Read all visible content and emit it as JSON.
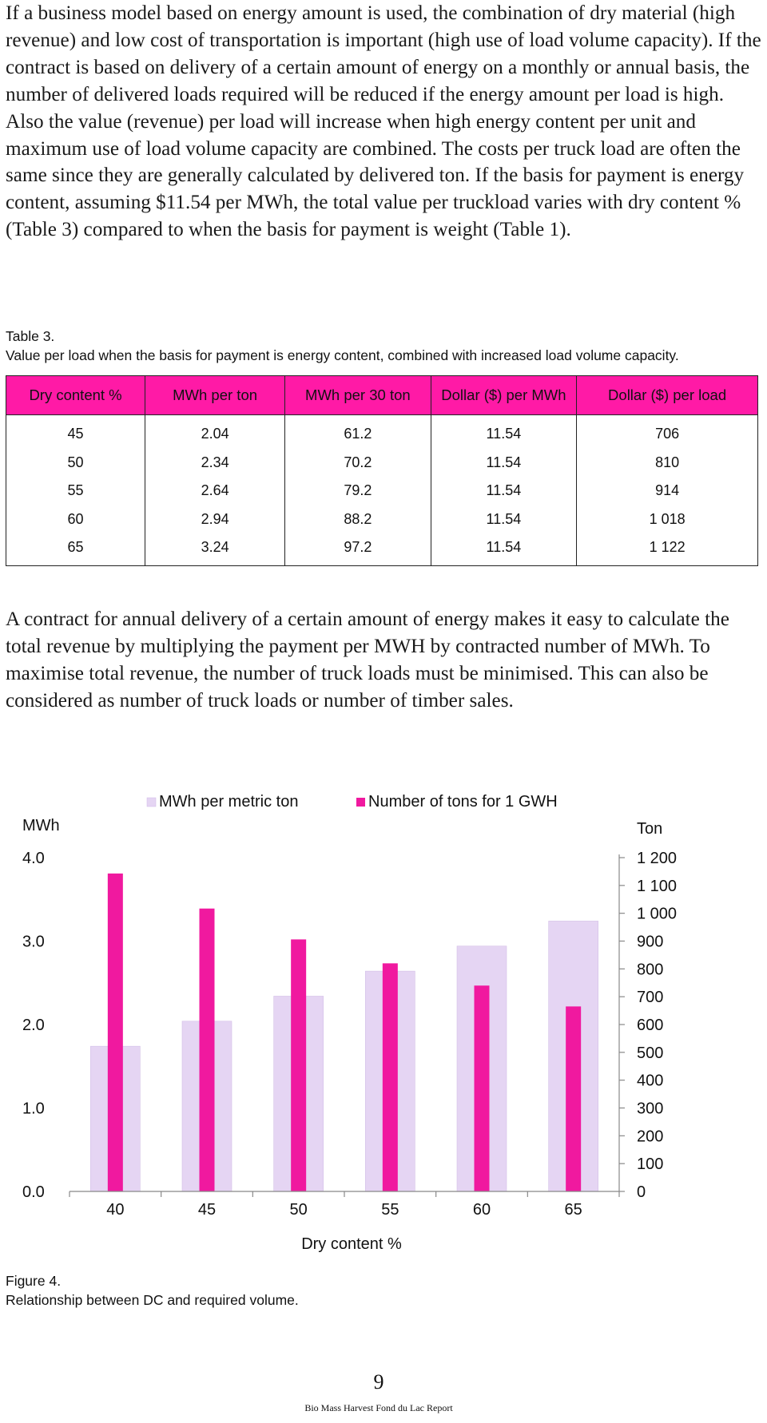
{
  "para1": "If a business model based on energy amount is used, the combination of dry material (high revenue) and low cost of transportation is important (high use of load volume capacity). If the contract is based on delivery of a certain amount of energy on a monthly or annual basis, the number of delivered loads required will be reduced if the energy amount per load is high. Also the value (revenue) per load will increase when high energy content per unit and maximum use of load volume capacity are combined. The costs per truck load are often the same since they are generally calculated by delivered ton. If the basis for payment is energy content, assuming $11.54 per MWh, the total value per truckload varies with dry content % (Table 3) compared to when the basis for payment is weight (Table 1).",
  "table": {
    "caption_label": "Table 3.",
    "caption_text": "Value per load when the basis for payment is energy content, combined with increased load volume capacity.",
    "header_color": "#ff1aa6",
    "columns": [
      "Dry content %",
      "MWh per ton",
      "MWh per 30 ton",
      "Dollar ($) per MWh",
      "Dollar ($) per load"
    ],
    "rows": [
      [
        "45",
        "2.04",
        "61.2",
        "11.54",
        "706"
      ],
      [
        "50",
        "2.34",
        "70.2",
        "11.54",
        "810"
      ],
      [
        "55",
        "2.64",
        "79.2",
        "11.54",
        "914"
      ],
      [
        "60",
        "2.94",
        "88.2",
        "11.54",
        "1 018"
      ],
      [
        "65",
        "3.24",
        "97.2",
        "11.54",
        "1 122"
      ]
    ]
  },
  "para2": "A contract for annual delivery of a certain amount of energy makes it easy to calculate the total revenue by multiplying the payment per MWH by contracted number of MWh. To maximise total revenue, the number of truck loads must be minimised. This can also be considered as number of truck loads or number of timber sales.",
  "chart_data": {
    "type": "bar",
    "title": "",
    "categories": [
      "40",
      "45",
      "50",
      "55",
      "60",
      "65"
    ],
    "xlabel": "Dry content %",
    "ylabel_left": "MWh",
    "ylabel_right": "Ton",
    "ylim_left": [
      0,
      4
    ],
    "ylim_right": [
      0,
      1200
    ],
    "left_ticks": [
      "0.0",
      "1.0",
      "2.0",
      "3.0",
      "4.0"
    ],
    "right_ticks": [
      "0",
      "100",
      "200",
      "300",
      "400",
      "500",
      "600",
      "700",
      "800",
      "900",
      "1 000",
      "1 100",
      "1 200"
    ],
    "legend_position": "top",
    "series": [
      {
        "name": "MWh per metric ton",
        "axis": "left",
        "color": "#e5d5f3",
        "values": [
          1.74,
          2.04,
          2.34,
          2.64,
          2.94,
          3.24
        ]
      },
      {
        "name": "Number of tons for 1 GWH",
        "axis": "right",
        "color": "#f0199f",
        "values": [
          1143,
          1017,
          906,
          820,
          740,
          665
        ]
      }
    ],
    "grid": false
  },
  "figure": {
    "caption_label": "Figure 4.",
    "caption_text": "Relationship between DC and required volume."
  },
  "footer": {
    "page_number": "9",
    "report_title": "Bio Mass Harvest Fond du Lac Report"
  }
}
